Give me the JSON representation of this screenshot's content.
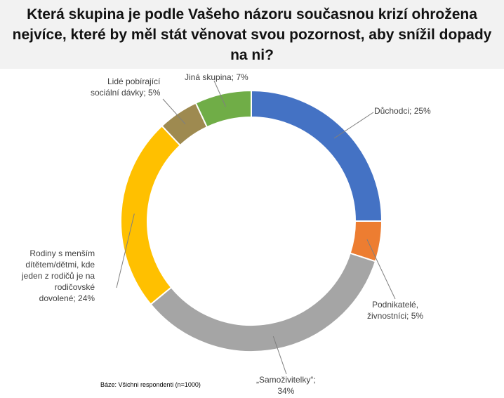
{
  "title": "Která skupina je podle Vašeho názoru současnou krizí ohrožena nejvíce, které by měl stát věnovat svou pozornost, aby snížil dopady na ni?",
  "footnote": "Báze: Všichni respondenti (n=1000)",
  "chart_data": {
    "type": "pie",
    "donut": true,
    "title": "Která skupina je podle Vašeho názoru současnou krizí ohrožena nejvíce, které by měl stát věnovat svou pozornost, aby snížil dopady na ni?",
    "legend": "none",
    "unit": "%",
    "slices": [
      {
        "label_lines": [
          "Důchodci; 25%"
        ],
        "category": "Důchodci",
        "value": 25,
        "color": "#4472c4"
      },
      {
        "label_lines": [
          "Podnikatelé,",
          "živnostníci; 5%"
        ],
        "category": "Podnikatelé, živnostníci",
        "value": 5,
        "color": "#ed7d31"
      },
      {
        "label_lines": [
          "„Samoživitelky“;",
          "34%"
        ],
        "category": "„Samoživitelky“",
        "value": 34,
        "color": "#a5a5a5"
      },
      {
        "label_lines": [
          "Rodiny s menším",
          "dítětem/dětmi, kde",
          "jeden z rodičů je na",
          "rodičovské",
          "dovolené; 24%"
        ],
        "category": "Rodiny s menším dítětem/dětmi, kde jeden z rodičů je na rodičovské dovolené",
        "value": 24,
        "color": "#ffc000"
      },
      {
        "label_lines": [
          "Lidé pobírající",
          "sociální dávky; 5%"
        ],
        "category": "Lidé pobírající sociální dávky",
        "value": 5,
        "color": "#9e8a50"
      },
      {
        "label_lines": [
          "Jiná skupina; 7%"
        ],
        "category": "Jiná skupina",
        "value": 7,
        "color": "#70ad47"
      }
    ]
  }
}
